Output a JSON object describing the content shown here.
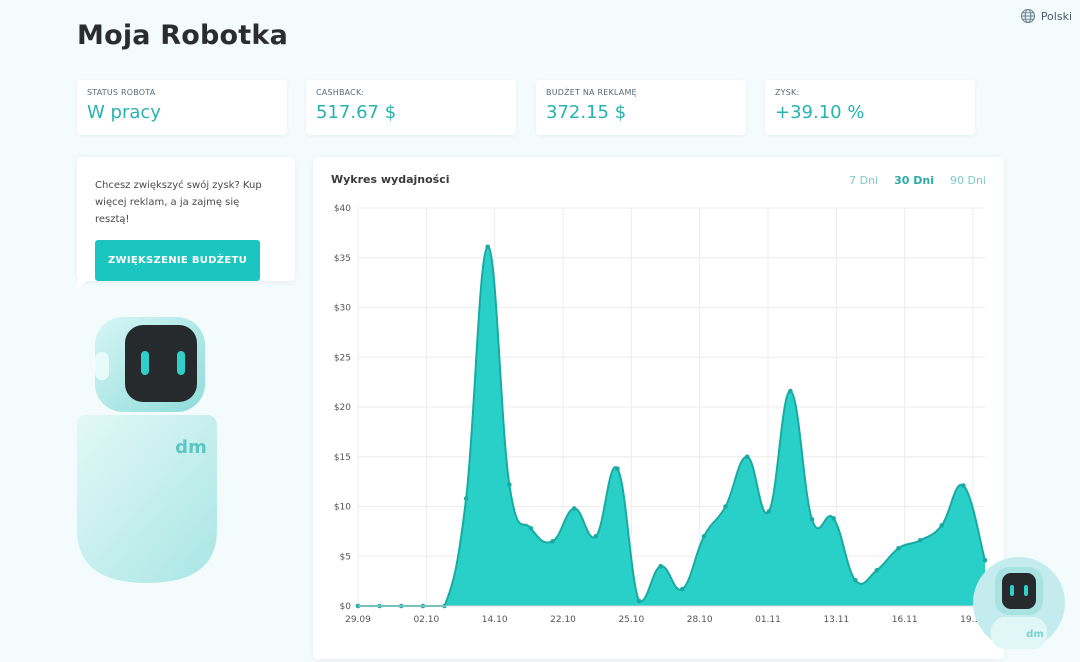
{
  "language": {
    "label": "Polski",
    "icon": "globe-icon"
  },
  "page": {
    "title": "Moja Robotka"
  },
  "stats": [
    {
      "label": "STATUS ROBOTA",
      "value": "W pracy"
    },
    {
      "label": "CASHBACK:",
      "value": "517.67 $"
    },
    {
      "label": "BUDŻET NA REKLAMĘ",
      "value": "372.15 $"
    },
    {
      "label": "ZYSK:",
      "value": "+39.10 %"
    }
  ],
  "promo": {
    "text": "Chcesz zwiększyć swój zysk? Kup więcej reklam, a ja zajmę się resztą!",
    "button_label": "ZWIĘKSZENIE BUDŻETU"
  },
  "robot": {
    "logo_text": "dm"
  },
  "colors": {
    "accent": "#1cc6c0",
    "accent_dark": "#27b3b0",
    "fill": "#1ecdc4",
    "line": "#19aaa4"
  },
  "chart_panel": {
    "title": "Wykres wydajności",
    "tabs": [
      {
        "label": "7 Dni",
        "active": false
      },
      {
        "label": "30 Dni",
        "active": true
      },
      {
        "label": "90 Dni",
        "active": false
      }
    ]
  },
  "chart_data": {
    "type": "area",
    "title": "Wykres wydajności",
    "ylim": [
      0,
      40
    ],
    "y_ticks": [
      "$0",
      "$5",
      "$10",
      "$15",
      "$20",
      "$25",
      "$30",
      "$35",
      "$40"
    ],
    "x_labels": [
      "29.09",
      "02.10",
      "14.10",
      "22.10",
      "25.10",
      "28.10",
      "01.11",
      "13.11",
      "16.11",
      "19.11"
    ],
    "grid": true,
    "legend": "none",
    "values": [
      0,
      0,
      0,
      0,
      0,
      10.8,
      36.1,
      12.2,
      7.8,
      6.5,
      9.8,
      7.0,
      13.8,
      0.5,
      4.0,
      1.7,
      7.0,
      10.0,
      15.0,
      9.5,
      21.6,
      8.7,
      8.8,
      2.6,
      3.6,
      5.8,
      6.6,
      8.1,
      12.1,
      4.6
    ]
  }
}
